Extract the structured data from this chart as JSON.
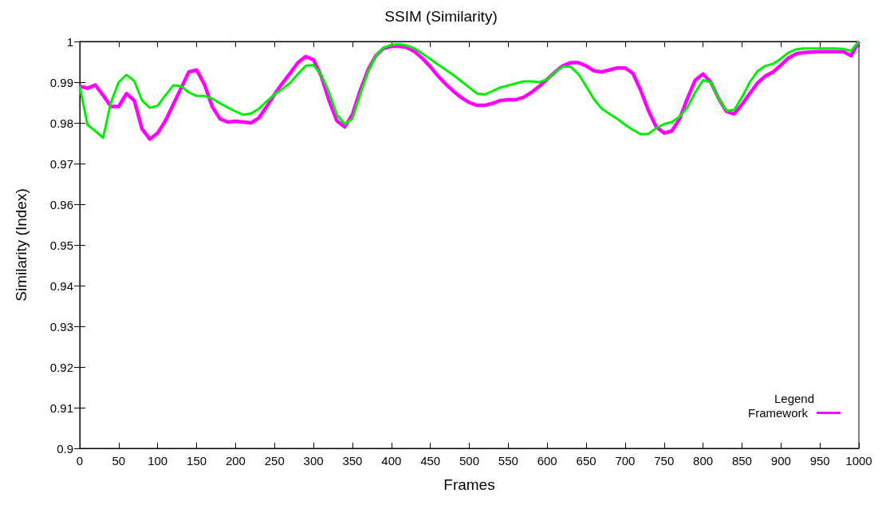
{
  "chart_data": {
    "type": "line",
    "title": "SSIM (Similarity)",
    "xlabel": "Frames",
    "ylabel": "Similarity (Index)",
    "legend_title": "Legend",
    "legend": "bottom right",
    "grid": false,
    "marker": "none",
    "line_style": "solid",
    "x": [
      0,
      10,
      20,
      30,
      40,
      50,
      60,
      70,
      80,
      90,
      100,
      110,
      120,
      130,
      140,
      150,
      160,
      170,
      180,
      190,
      200,
      210,
      220,
      230,
      240,
      250,
      260,
      270,
      280,
      290,
      300,
      310,
      320,
      330,
      340,
      350,
      360,
      370,
      380,
      390,
      400,
      410,
      420,
      430,
      440,
      450,
      460,
      470,
      480,
      490,
      500,
      510,
      520,
      530,
      540,
      550,
      560,
      570,
      580,
      590,
      600,
      610,
      620,
      630,
      640,
      650,
      660,
      670,
      680,
      690,
      700,
      710,
      720,
      730,
      740,
      750,
      760,
      770,
      780,
      790,
      800,
      810,
      820,
      830,
      840,
      850,
      860,
      870,
      880,
      890,
      900,
      910,
      920,
      930,
      940,
      950,
      960,
      970,
      980,
      990,
      1000
    ],
    "series": [
      {
        "name": "Framework",
        "color": "#ff00ff",
        "values": [
          0.989,
          0.9885,
          0.9893,
          0.9868,
          0.984,
          0.984,
          0.9872,
          0.9855,
          0.9785,
          0.976,
          0.9775,
          0.9805,
          0.9845,
          0.9885,
          0.9925,
          0.993,
          0.9895,
          0.984,
          0.981,
          0.9802,
          0.9804,
          0.9802,
          0.98,
          0.9812,
          0.984,
          0.987,
          0.9897,
          0.9922,
          0.9948,
          0.9963,
          0.9955,
          0.9915,
          0.9855,
          0.9805,
          0.979,
          0.982,
          0.988,
          0.993,
          0.9965,
          0.9983,
          0.9988,
          0.9988,
          0.9985,
          0.9975,
          0.9958,
          0.9938,
          0.9915,
          0.9895,
          0.9877,
          0.9862,
          0.985,
          0.9843,
          0.9843,
          0.9848,
          0.9855,
          0.9857,
          0.9857,
          0.9863,
          0.9875,
          0.989,
          0.9907,
          0.9925,
          0.994,
          0.9948,
          0.9948,
          0.994,
          0.9928,
          0.9925,
          0.993,
          0.9935,
          0.9935,
          0.9922,
          0.988,
          0.983,
          0.979,
          0.9775,
          0.978,
          0.981,
          0.986,
          0.9905,
          0.992,
          0.99,
          0.986,
          0.9828,
          0.9822,
          0.9845,
          0.9872,
          0.9898,
          0.9915,
          0.9925,
          0.9942,
          0.996,
          0.997,
          0.9973,
          0.9974,
          0.9975,
          0.9975,
          0.9975,
          0.9975,
          0.9965,
          1.0
        ]
      },
      {
        "color": "#00ee00",
        "values": [
          0.989,
          0.9795,
          0.978,
          0.9763,
          0.985,
          0.99,
          0.9918,
          0.9903,
          0.9855,
          0.9837,
          0.9842,
          0.9868,
          0.9892,
          0.989,
          0.9875,
          0.9866,
          0.9866,
          0.986,
          0.9848,
          0.9838,
          0.9828,
          0.982,
          0.9823,
          0.9835,
          0.9853,
          0.987,
          0.9883,
          0.9898,
          0.992,
          0.994,
          0.9942,
          0.9918,
          0.9875,
          0.982,
          0.9797,
          0.981,
          0.987,
          0.9925,
          0.9965,
          0.9985,
          0.9992,
          0.9993,
          0.999,
          0.9983,
          0.997,
          0.9957,
          0.9943,
          0.993,
          0.9917,
          0.9902,
          0.9887,
          0.9872,
          0.987,
          0.9878,
          0.9887,
          0.9892,
          0.9897,
          0.9902,
          0.9902,
          0.99,
          0.9907,
          0.9925,
          0.9938,
          0.9938,
          0.992,
          0.989,
          0.9858,
          0.9835,
          0.9822,
          0.981,
          0.9795,
          0.9783,
          0.9772,
          0.9773,
          0.9787,
          0.9797,
          0.9802,
          0.9815,
          0.9838,
          0.9875,
          0.9905,
          0.99,
          0.986,
          0.983,
          0.9832,
          0.9863,
          0.99,
          0.9927,
          0.994,
          0.9945,
          0.9958,
          0.9973,
          0.9981,
          0.9983,
          0.9983,
          0.9983,
          0.9983,
          0.9983,
          0.9982,
          0.9977,
          1.0
        ]
      }
    ],
    "xlim": [
      0,
      1000
    ],
    "xticks": [
      0,
      50,
      100,
      150,
      200,
      250,
      300,
      350,
      400,
      450,
      500,
      550,
      600,
      650,
      700,
      750,
      800,
      850,
      900,
      950,
      1000
    ],
    "ylim": [
      0.9,
      1
    ],
    "yticks": [
      0.9,
      0.91,
      0.92,
      0.93,
      0.94,
      0.95,
      0.96,
      0.97,
      0.98,
      0.99,
      1
    ]
  }
}
